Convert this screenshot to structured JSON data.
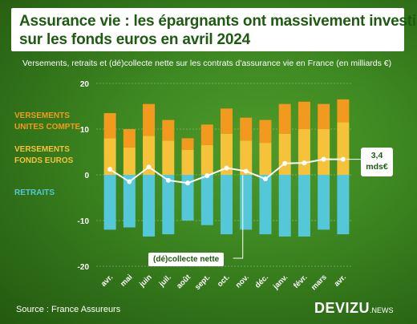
{
  "title": {
    "line1": "Assurance vie : les épargnants ont massivement investi",
    "line2": "sur les fonds euros en avril 2024"
  },
  "subtitle": "Versements, retraits et (dé)collecte nette sur les contrats d'assurance vie en France (en milliards €)",
  "legend": {
    "uc_line1": "VERSEMENTS",
    "uc_line2": "UNITES COMPTE",
    "fe_line1": "VERSEMENTS",
    "fe_line2": "FONDS EUROS",
    "retraits": "RETRAITS"
  },
  "annotations": {
    "last_value_line1": "3,4",
    "last_value_line2": "mds€",
    "net_label": "(dé)collecte nette"
  },
  "source": "Source : France Assureurs",
  "brand": {
    "name": "DEVIZU",
    "suffix": ".NEWS"
  },
  "colors": {
    "uc": "#f39a1e",
    "fonds_euros": "#f5c23a",
    "retraits": "#54c8d8",
    "net_line": "#ffffff",
    "title_text": "#1f5a12"
  },
  "chart_data": {
    "type": "bar",
    "categories": [
      "avr.",
      "mai",
      "juin",
      "juil.",
      "août",
      "sept.",
      "oct.",
      "nov.",
      "déc.",
      "janv.",
      "févr.",
      "mars",
      "avr."
    ],
    "series": [
      {
        "name": "VERSEMENTS FONDS EUROS",
        "values": [
          8.0,
          6.0,
          8.5,
          7.5,
          5.5,
          6.5,
          9.0,
          7.5,
          7.0,
          9.0,
          10.0,
          10.0,
          11.5
        ]
      },
      {
        "name": "VERSEMENTS UNITES COMPTE",
        "values": [
          5.5,
          4.0,
          7.0,
          4.5,
          2.5,
          4.5,
          5.5,
          5.0,
          5.0,
          6.5,
          6.0,
          5.5,
          5.0
        ]
      },
      {
        "name": "RETRAITS",
        "values": [
          -12.0,
          -11.5,
          -13.5,
          -13.0,
          -10.0,
          -11.0,
          -13.0,
          -12.0,
          -13.0,
          -13.5,
          -13.5,
          -12.0,
          -13.0
        ]
      },
      {
        "name": "(dé)collecte nette",
        "values": [
          1.2,
          -1.5,
          1.7,
          -1.2,
          -1.8,
          -0.2,
          1.5,
          0.8,
          -0.9,
          2.5,
          2.6,
          3.4,
          3.4
        ]
      }
    ],
    "yticks": [
      20,
      10,
      0,
      -10,
      -20
    ],
    "ylim": [
      -20,
      20
    ],
    "grid": true
  }
}
